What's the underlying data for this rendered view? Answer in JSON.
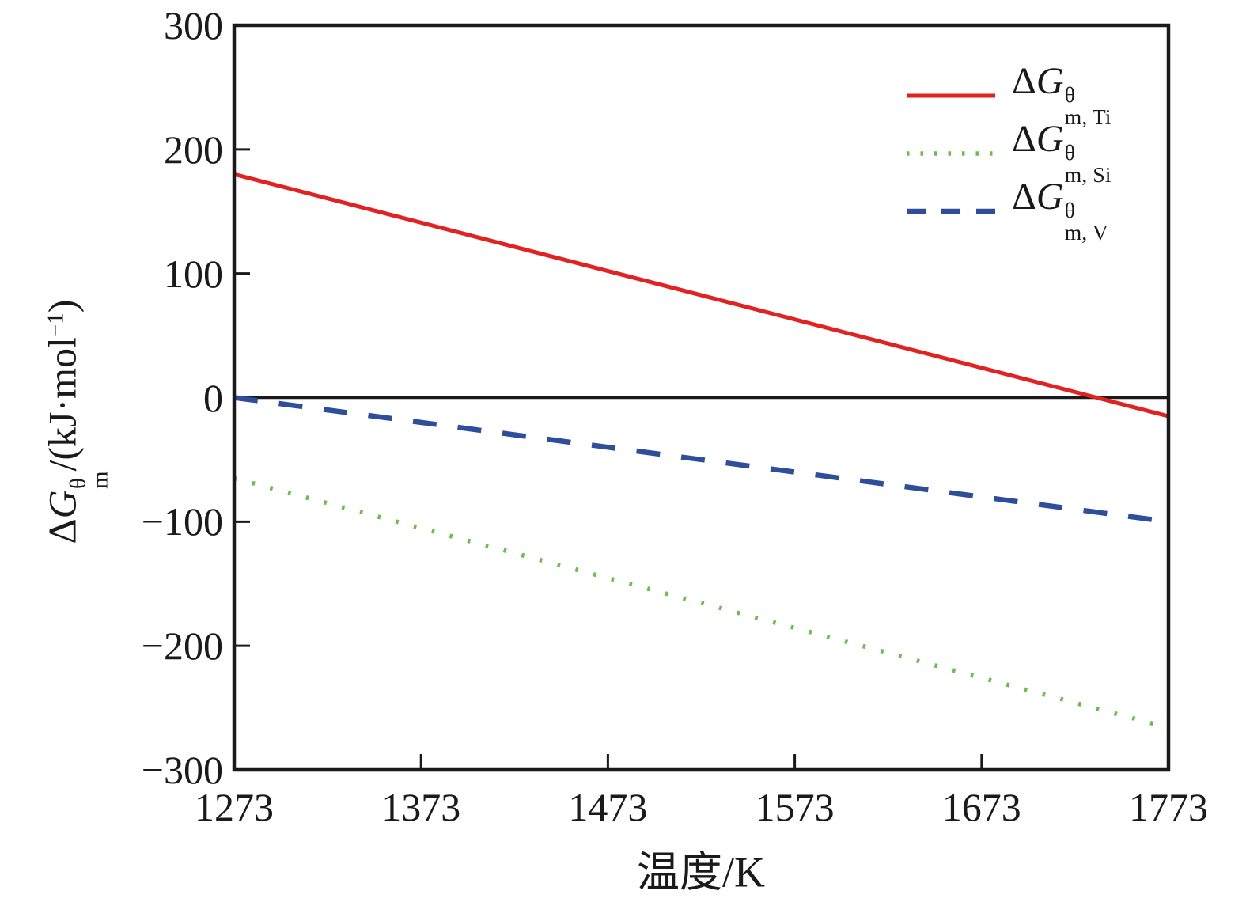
{
  "figure": {
    "background": "#ffffff",
    "axis_color": "#1a1a1a",
    "xlabel": "温度/K",
    "ylabel_parts": {
      "delta": "Δ",
      "g": "G",
      "sup": "θ",
      "sub": "m",
      "unit_open": "/(kJ·mol",
      "unit_exp": "−1",
      "unit_close": ")"
    }
  },
  "chart_data": {
    "type": "line",
    "title": "",
    "xlabel": "温度/K",
    "ylabel": "ΔG_m^θ/(kJ·mol−1)",
    "xlim": [
      1273,
      1773
    ],
    "ylim": [
      -300,
      300
    ],
    "x_ticks": [
      1273,
      1373,
      1473,
      1573,
      1673,
      1773
    ],
    "x_tick_labels": [
      "1273",
      "1373",
      "1473",
      "1573",
      "1673",
      "1773"
    ],
    "y_ticks": [
      300,
      200,
      100,
      0,
      -100,
      -200,
      -300
    ],
    "y_tick_labels": [
      "300",
      "200",
      "100",
      "0",
      "−100",
      "−200",
      "−300"
    ],
    "grid": false,
    "zero_line": 0,
    "legend_position": "upper right",
    "series": [
      {
        "name": "ΔG θ m, Ti",
        "label": {
          "delta": "Δ",
          "g": "G",
          "sup": "θ",
          "sub": "m, Ti"
        },
        "color": "#e22120",
        "line_style": "solid",
        "x": [
          1273,
          1773
        ],
        "values": [
          180,
          -15
        ]
      },
      {
        "name": "ΔG θ m, Si",
        "label": {
          "delta": "Δ",
          "g": "G",
          "sup": "θ",
          "sub": "m, Si"
        },
        "color": "#6abf4a",
        "line_style": "dotted",
        "x": [
          1273,
          1773
        ],
        "values": [
          -65,
          -266
        ]
      },
      {
        "name": "ΔG θ m, V",
        "label": {
          "delta": "Δ",
          "g": "G",
          "sup": "θ",
          "sub": "m, V"
        },
        "color": "#2e4e9c",
        "line_style": "dashed",
        "x": [
          1273,
          1773
        ],
        "values": [
          0,
          -100
        ]
      }
    ]
  }
}
